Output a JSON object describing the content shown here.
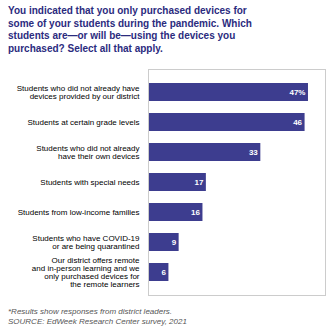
{
  "chart_data": {
    "type": "bar",
    "title": "You indicated that you only purchased devices for\nsome of your students during the pandemic. Which\nstudents are—or will be—using the devices you\npurchased? Select all that apply.",
    "categories": [
      "Our district offers remote\nand in-person learning and we\nonly purchased devices for\nthe remote learners",
      "Students who have COVID-19\nor are being quarantined",
      "Students from low-income families",
      "Students with special needs",
      "Students who did not already\nhave their own devices",
      "Students at certain grade levels",
      "Students who did not already have\ndevices provided by our district"
    ],
    "values": [
      6,
      9,
      16,
      17,
      33,
      46,
      47
    ],
    "value_labels": [
      "6",
      "9",
      "16",
      "17",
      "33",
      "46",
      "47%"
    ],
    "color": "#3d3d8f",
    "orientation": "horizontal",
    "xlim": [
      0,
      52
    ],
    "data_labels": true,
    "tick_labels": "y",
    "grid": false,
    "annotations": [
      "*Results show responses from district leaders.\nSOURCE: EdWeek Research Center survey, 2021"
    ]
  }
}
